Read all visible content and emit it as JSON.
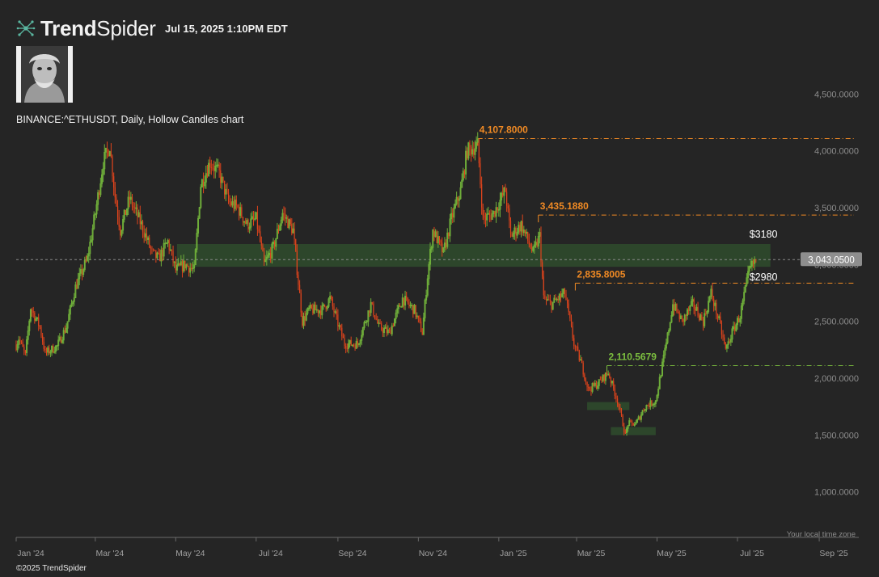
{
  "brand": {
    "name_bold": "Trend",
    "name_light": "Spider"
  },
  "timestamp": "Jul 15, 2025 1:10PM EDT",
  "symbol_line": "BINANCE:^ETHUSDT, Daily, Hollow Candles chart",
  "copyright": "©2025 TrendSpider",
  "timezone_note": "Your local time zone",
  "colors": {
    "background": "#252525",
    "up": "#6fae3a",
    "down": "#e0441c",
    "resistance": "#f08a24",
    "support": "#7cbf3f",
    "zone": "#2f4a2c"
  },
  "chart_data": {
    "type": "candlestick",
    "x_tick_labels": [
      "Jan '24",
      "Mar '24",
      "May '24",
      "Jul '24",
      "Sep '24",
      "Nov '24",
      "Jan '25",
      "Mar '25",
      "May '25",
      "Jul '25",
      "Sep '25"
    ],
    "y_tick_values": [
      1000,
      1500,
      2000,
      2500,
      3000,
      3500,
      4000,
      4500
    ],
    "y_tick_labels": [
      "1,000.0000",
      "1,500.0000",
      "2,000.0000",
      "2,500.0000",
      "3,000.0000",
      "3,500.0000",
      "4,000.0000",
      "4,500.0000"
    ],
    "ylim": [
      600,
      4900
    ],
    "x_range": [
      "2024-01-01",
      "2025-10-01"
    ],
    "grid": false,
    "last_price": {
      "value": 3043.05,
      "label": "3,043.0500"
    },
    "levels": [
      {
        "value": 4107.8,
        "label": "4,107.8000",
        "start": "2024-12-16",
        "kind": "resistance"
      },
      {
        "value": 3435.188,
        "label": "3,435.1880",
        "start": "2025-01-31",
        "kind": "resistance"
      },
      {
        "value": 2835.8005,
        "label": "2,835.8005",
        "start": "2025-02-28",
        "kind": "resistance"
      },
      {
        "value": 2110.5679,
        "label": "2,110.5679",
        "start": "2025-03-24",
        "kind": "support"
      }
    ],
    "zones": [
      {
        "low": 2980,
        "high": 3180,
        "start": "2024-05-02",
        "end": "2025-07-26",
        "low_label": "$2980",
        "high_label": "$3180"
      },
      {
        "low": 1720,
        "high": 1790,
        "start": "2025-03-09",
        "end": "2025-04-10"
      },
      {
        "low": 1500,
        "high": 1570,
        "start": "2025-03-27",
        "end": "2025-04-30"
      }
    ],
    "price_path": [
      [
        "2024-01-01",
        2290
      ],
      [
        "2024-01-03",
        2350
      ],
      [
        "2024-01-08",
        2200
      ],
      [
        "2024-01-12",
        2620
      ],
      [
        "2024-01-19",
        2450
      ],
      [
        "2024-01-23",
        2220
      ],
      [
        "2024-02-01",
        2280
      ],
      [
        "2024-02-08",
        2450
      ],
      [
        "2024-02-15",
        2800
      ],
      [
        "2024-02-24",
        3050
      ],
      [
        "2024-03-01",
        3450
      ],
      [
        "2024-03-07",
        3900
      ],
      [
        "2024-03-12",
        4050
      ],
      [
        "2024-03-16",
        3600
      ],
      [
        "2024-03-20",
        3300
      ],
      [
        "2024-03-27",
        3580
      ],
      [
        "2024-04-05",
        3350
      ],
      [
        "2024-04-13",
        3100
      ],
      [
        "2024-04-18",
        3050
      ],
      [
        "2024-04-25",
        3200
      ],
      [
        "2024-05-01",
        2950
      ],
      [
        "2024-05-08",
        3000
      ],
      [
        "2024-05-15",
        2950
      ],
      [
        "2024-05-20",
        3700
      ],
      [
        "2024-05-27",
        3900
      ],
      [
        "2024-06-03",
        3800
      ],
      [
        "2024-06-10",
        3550
      ],
      [
        "2024-06-17",
        3500
      ],
      [
        "2024-06-24",
        3350
      ],
      [
        "2024-07-01",
        3400
      ],
      [
        "2024-07-07",
        3000
      ],
      [
        "2024-07-14",
        3150
      ],
      [
        "2024-07-21",
        3450
      ],
      [
        "2024-07-29",
        3300
      ],
      [
        "2024-08-05",
        2500
      ],
      [
        "2024-08-10",
        2600
      ],
      [
        "2024-08-20",
        2600
      ],
      [
        "2024-08-26",
        2700
      ],
      [
        "2024-09-06",
        2300
      ],
      [
        "2024-09-16",
        2300
      ],
      [
        "2024-09-26",
        2650
      ],
      [
        "2024-10-02",
        2450
      ],
      [
        "2024-10-10",
        2400
      ],
      [
        "2024-10-20",
        2700
      ],
      [
        "2024-10-29",
        2600
      ],
      [
        "2024-11-04",
        2400
      ],
      [
        "2024-11-08",
        2900
      ],
      [
        "2024-11-12",
        3300
      ],
      [
        "2024-11-20",
        3100
      ],
      [
        "2024-11-26",
        3400
      ],
      [
        "2024-12-03",
        3650
      ],
      [
        "2024-12-08",
        4000
      ],
      [
        "2024-12-16",
        4050
      ],
      [
        "2024-12-20",
        3400
      ],
      [
        "2024-12-28",
        3450
      ],
      [
        "2025-01-06",
        3650
      ],
      [
        "2025-01-10",
        3250
      ],
      [
        "2025-01-18",
        3350
      ],
      [
        "2025-01-27",
        3100
      ],
      [
        "2025-02-01",
        3250
      ],
      [
        "2025-02-04",
        2700
      ],
      [
        "2025-02-10",
        2650
      ],
      [
        "2025-02-20",
        2750
      ],
      [
        "2025-02-27",
        2300
      ],
      [
        "2025-03-04",
        2150
      ],
      [
        "2025-03-10",
        1900
      ],
      [
        "2025-03-17",
        1950
      ],
      [
        "2025-03-25",
        2050
      ],
      [
        "2025-04-01",
        1800
      ],
      [
        "2025-04-07",
        1500
      ],
      [
        "2025-04-09",
        1600
      ],
      [
        "2025-04-15",
        1600
      ],
      [
        "2025-04-22",
        1750
      ],
      [
        "2025-04-30",
        1800
      ],
      [
        "2025-05-08",
        2300
      ],
      [
        "2025-05-13",
        2650
      ],
      [
        "2025-05-20",
        2500
      ],
      [
        "2025-05-28",
        2650
      ],
      [
        "2025-06-05",
        2500
      ],
      [
        "2025-06-11",
        2750
      ],
      [
        "2025-06-17",
        2500
      ],
      [
        "2025-06-22",
        2250
      ],
      [
        "2025-06-27",
        2400
      ],
      [
        "2025-07-03",
        2550
      ],
      [
        "2025-07-10",
        2950
      ],
      [
        "2025-07-15",
        3043
      ]
    ]
  }
}
